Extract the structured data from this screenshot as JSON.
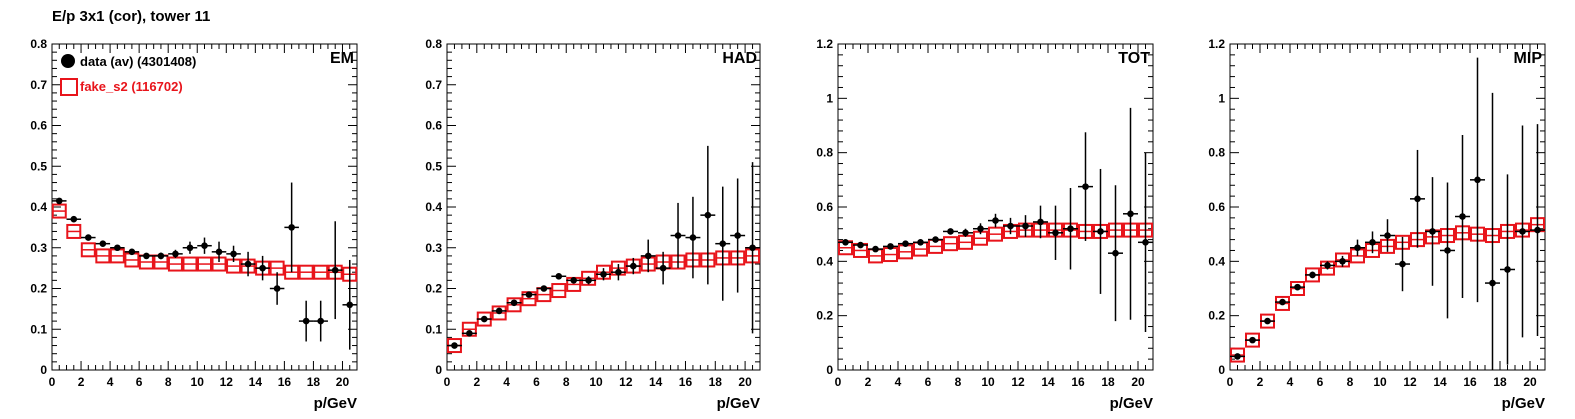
{
  "title": "E/p 3x1 (cor), tower 11",
  "legend": [
    {
      "label": "data (av) (4301408)",
      "color": "#000000",
      "marker": "filled-circle"
    },
    {
      "label": "fake_s2 (116702)",
      "color": "#e8141b",
      "marker": "open-square"
    }
  ],
  "colors": {
    "data": "#000000",
    "fake": "#e8141b"
  },
  "chart_data": [
    {
      "type": "scatter",
      "label": "EM",
      "xlabel": "p/GeV",
      "ylabel": "",
      "xlim": [
        0,
        21
      ],
      "ylim": [
        0,
        0.8
      ],
      "xticks": [
        "0",
        "2",
        "4",
        "6",
        "8",
        "10",
        "12",
        "14",
        "16",
        "18",
        "20"
      ],
      "yticks": [
        "0",
        "0.1",
        "0.2",
        "0.3",
        "0.4",
        "0.5",
        "0.6",
        "0.7",
        "0.8"
      ],
      "series": [
        {
          "name": "data (av) (4301408)",
          "x": [
            0.5,
            1.5,
            2.5,
            3.5,
            4.5,
            5.5,
            6.5,
            7.5,
            8.5,
            9.5,
            10.5,
            11.5,
            12.5,
            13.5,
            14.5,
            15.5,
            16.5,
            17.5,
            18.5,
            19.5,
            20.5
          ],
          "y": [
            0.415,
            0.37,
            0.325,
            0.31,
            0.3,
            0.29,
            0.28,
            0.28,
            0.285,
            0.3,
            0.305,
            0.29,
            0.285,
            0.26,
            0.25,
            0.2,
            0.35,
            0.12,
            0.12,
            0.245,
            0.16
          ],
          "err": [
            0.005,
            0.005,
            0.005,
            0.005,
            0.005,
            0.005,
            0.006,
            0.008,
            0.01,
            0.015,
            0.02,
            0.025,
            0.02,
            0.03,
            0.03,
            0.04,
            0.11,
            0.05,
            0.05,
            0.12,
            0.11
          ]
        },
        {
          "name": "fake_s2 (116702)",
          "x": [
            0.5,
            1.5,
            2.5,
            3.5,
            4.5,
            5.5,
            6.5,
            7.5,
            8.5,
            9.5,
            10.5,
            11.5,
            12.5,
            13.5,
            14.5,
            15.5,
            16.5,
            17.5,
            18.5,
            19.5,
            20.5
          ],
          "y": [
            0.39,
            0.34,
            0.295,
            0.28,
            0.28,
            0.27,
            0.265,
            0.265,
            0.26,
            0.26,
            0.26,
            0.26,
            0.255,
            0.255,
            0.25,
            0.25,
            0.24,
            0.24,
            0.24,
            0.24,
            0.235
          ]
        }
      ]
    },
    {
      "type": "scatter",
      "label": "HAD",
      "xlabel": "p/GeV",
      "ylabel": "",
      "xlim": [
        0,
        21
      ],
      "ylim": [
        0,
        0.8
      ],
      "xticks": [
        "0",
        "2",
        "4",
        "6",
        "8",
        "10",
        "12",
        "14",
        "16",
        "18",
        "20"
      ],
      "yticks": [
        "0",
        "0.1",
        "0.2",
        "0.3",
        "0.4",
        "0.5",
        "0.6",
        "0.7",
        "0.8"
      ],
      "series": [
        {
          "name": "data (av) (4301408)",
          "x": [
            0.5,
            1.5,
            2.5,
            3.5,
            4.5,
            5.5,
            6.5,
            7.5,
            8.5,
            9.5,
            10.5,
            11.5,
            12.5,
            13.5,
            14.5,
            15.5,
            16.5,
            17.5,
            18.5,
            19.5,
            20.5
          ],
          "y": [
            0.06,
            0.09,
            0.125,
            0.145,
            0.165,
            0.185,
            0.2,
            0.23,
            0.22,
            0.22,
            0.235,
            0.24,
            0.255,
            0.28,
            0.25,
            0.33,
            0.325,
            0.38,
            0.31,
            0.33,
            0.3
          ],
          "err": [
            0.004,
            0.004,
            0.004,
            0.004,
            0.004,
            0.004,
            0.005,
            0.006,
            0.008,
            0.01,
            0.015,
            0.02,
            0.02,
            0.04,
            0.04,
            0.08,
            0.1,
            0.17,
            0.14,
            0.14,
            0.21
          ]
        },
        {
          "name": "fake_s2 (116702)",
          "x": [
            0.5,
            1.5,
            2.5,
            3.5,
            4.5,
            5.5,
            6.5,
            7.5,
            8.5,
            9.5,
            10.5,
            11.5,
            12.5,
            13.5,
            14.5,
            15.5,
            16.5,
            17.5,
            18.5,
            19.5,
            20.5
          ],
          "y": [
            0.06,
            0.1,
            0.125,
            0.14,
            0.16,
            0.175,
            0.185,
            0.195,
            0.21,
            0.225,
            0.24,
            0.25,
            0.255,
            0.26,
            0.265,
            0.265,
            0.27,
            0.27,
            0.275,
            0.275,
            0.28
          ]
        }
      ]
    },
    {
      "type": "scatter",
      "label": "TOT",
      "xlabel": "p/GeV",
      "ylabel": "",
      "xlim": [
        0,
        21
      ],
      "ylim": [
        0,
        1.2
      ],
      "xticks": [
        "0",
        "2",
        "4",
        "6",
        "8",
        "10",
        "12",
        "14",
        "16",
        "18",
        "20"
      ],
      "yticks": [
        "0",
        "0.2",
        "0.4",
        "0.6",
        "0.8",
        "1",
        "1.2"
      ],
      "series": [
        {
          "name": "data (av) (4301408)",
          "x": [
            0.5,
            1.5,
            2.5,
            3.5,
            4.5,
            5.5,
            6.5,
            7.5,
            8.5,
            9.5,
            10.5,
            11.5,
            12.5,
            13.5,
            14.5,
            15.5,
            16.5,
            17.5,
            18.5,
            19.5,
            20.5
          ],
          "y": [
            0.47,
            0.46,
            0.445,
            0.455,
            0.465,
            0.47,
            0.48,
            0.51,
            0.505,
            0.52,
            0.55,
            0.53,
            0.53,
            0.545,
            0.505,
            0.52,
            0.675,
            0.51,
            0.43,
            0.575,
            0.47
          ],
          "err": [
            0.006,
            0.006,
            0.006,
            0.006,
            0.006,
            0.006,
            0.008,
            0.01,
            0.015,
            0.02,
            0.025,
            0.03,
            0.04,
            0.06,
            0.1,
            0.15,
            0.2,
            0.23,
            0.25,
            0.39,
            0.33
          ]
        },
        {
          "name": "fake_s2 (116702)",
          "x": [
            0.5,
            1.5,
            2.5,
            3.5,
            4.5,
            5.5,
            6.5,
            7.5,
            8.5,
            9.5,
            10.5,
            11.5,
            12.5,
            13.5,
            14.5,
            15.5,
            16.5,
            17.5,
            18.5,
            19.5,
            20.5
          ],
          "y": [
            0.45,
            0.44,
            0.42,
            0.425,
            0.435,
            0.445,
            0.455,
            0.465,
            0.47,
            0.485,
            0.5,
            0.51,
            0.515,
            0.515,
            0.515,
            0.515,
            0.51,
            0.51,
            0.515,
            0.515,
            0.515
          ]
        }
      ]
    },
    {
      "type": "scatter",
      "label": "MIP",
      "xlabel": "p/GeV",
      "ylabel": "",
      "xlim": [
        0,
        21
      ],
      "ylim": [
        0,
        1.2
      ],
      "xticks": [
        "0",
        "2",
        "4",
        "6",
        "8",
        "10",
        "12",
        "14",
        "16",
        "18",
        "20"
      ],
      "yticks": [
        "0",
        "0.2",
        "0.4",
        "0.6",
        "0.8",
        "1",
        "1.2"
      ],
      "series": [
        {
          "name": "data (av) (4301408)",
          "x": [
            0.5,
            1.5,
            2.5,
            3.5,
            4.5,
            5.5,
            6.5,
            7.5,
            8.5,
            9.5,
            10.5,
            11.5,
            12.5,
            13.5,
            14.5,
            15.5,
            16.5,
            17.5,
            18.5,
            19.5,
            20.5
          ],
          "y": [
            0.05,
            0.11,
            0.18,
            0.25,
            0.305,
            0.35,
            0.385,
            0.4,
            0.45,
            0.47,
            0.495,
            0.39,
            0.63,
            0.51,
            0.44,
            0.565,
            0.7,
            0.32,
            0.37,
            0.51,
            0.515
          ],
          "err": [
            0.005,
            0.005,
            0.006,
            0.008,
            0.01,
            0.012,
            0.015,
            0.02,
            0.03,
            0.04,
            0.06,
            0.1,
            0.18,
            0.2,
            0.25,
            0.3,
            0.45,
            0.7,
            0.35,
            0.39,
            0.39
          ]
        },
        {
          "name": "fake_s2 (116702)",
          "x": [
            0.5,
            1.5,
            2.5,
            3.5,
            4.5,
            5.5,
            6.5,
            7.5,
            8.5,
            9.5,
            10.5,
            11.5,
            12.5,
            13.5,
            14.5,
            15.5,
            16.5,
            17.5,
            18.5,
            19.5,
            20.5
          ],
          "y": [
            0.055,
            0.11,
            0.18,
            0.245,
            0.3,
            0.35,
            0.375,
            0.405,
            0.42,
            0.44,
            0.455,
            0.47,
            0.48,
            0.49,
            0.495,
            0.505,
            0.5,
            0.495,
            0.51,
            0.515,
            0.535
          ]
        }
      ]
    }
  ]
}
